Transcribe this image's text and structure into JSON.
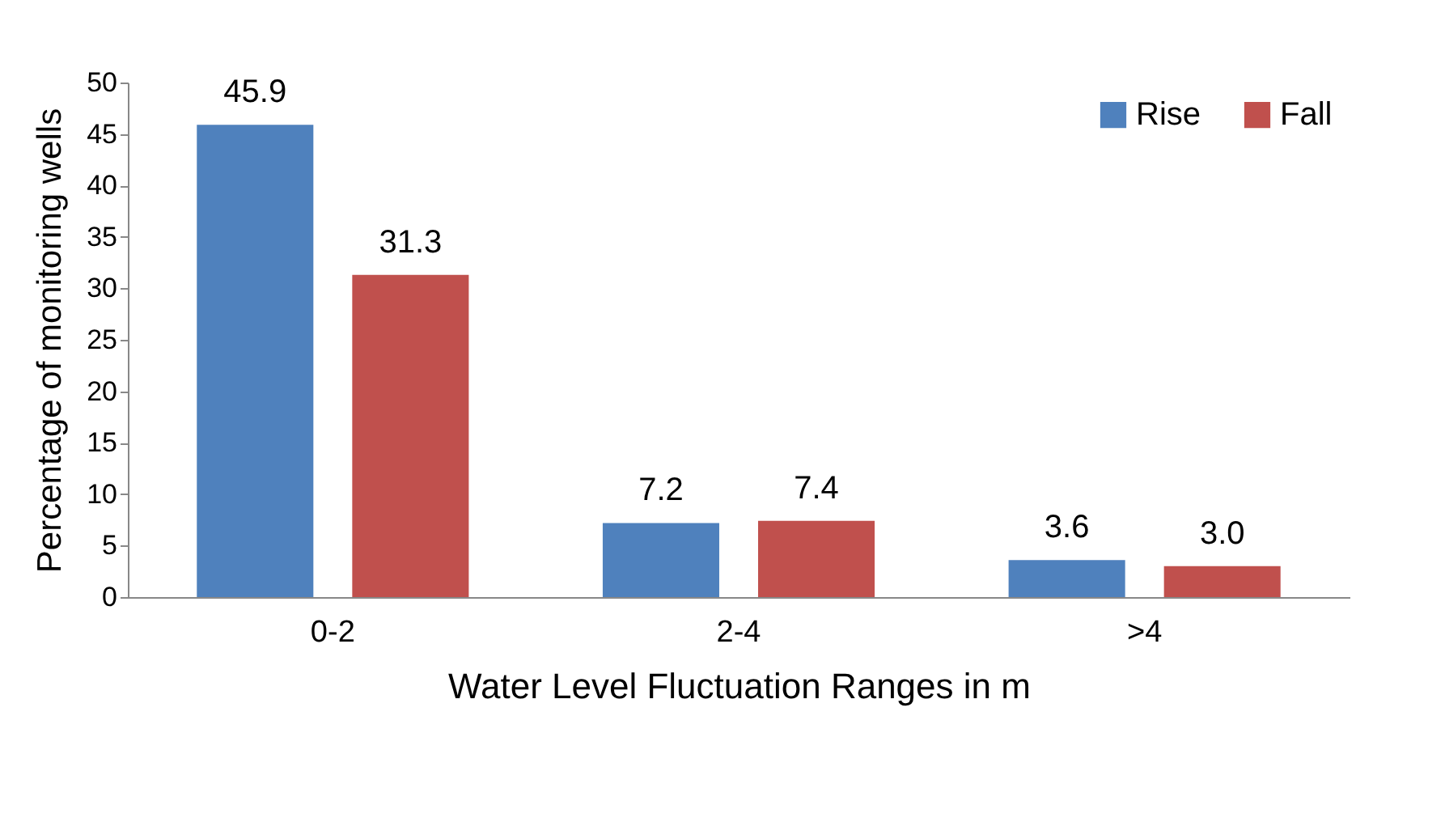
{
  "chart_data": {
    "type": "bar",
    "xlabel": "Water Level Fluctuation Ranges in m",
    "ylabel": "Percentage of monitoring wells",
    "categories": [
      "0-2",
      "2-4",
      ">4"
    ],
    "series": [
      {
        "name": "Rise",
        "color": "#4f81bd",
        "values": [
          45.9,
          7.2,
          3.6
        ],
        "value_labels": [
          "45.9",
          "7.2",
          "3.6"
        ]
      },
      {
        "name": "Fall",
        "color": "#c0504d",
        "values": [
          31.3,
          7.4,
          3.0
        ],
        "value_labels": [
          "31.3",
          "7.4",
          "3.0"
        ]
      }
    ],
    "ylim": [
      0,
      50
    ],
    "yticks": [
      0,
      5,
      10,
      15,
      20,
      25,
      30,
      35,
      40,
      45,
      50
    ],
    "grid": false,
    "legend": "top right"
  }
}
